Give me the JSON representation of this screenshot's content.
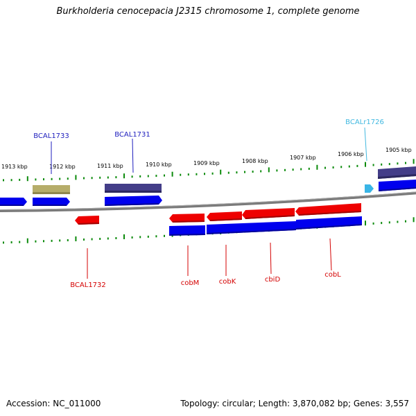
{
  "title": "Burkholderia cenocepacia J2315 chromosome 1, complete genome",
  "footer": {
    "accession": "Accession: NC_011000",
    "summary": "Topology: circular; Length: 3,870,082 bp; Genes: 3,557"
  },
  "colors": {
    "backbone": "#808080",
    "tick": "#0b8a0b",
    "cds_forward": "#0000ee",
    "cds_reverse": "#ee0000",
    "gene_olive": "#b6ad6a",
    "gene_purple": "#433d88",
    "rna": "#39b5e6",
    "label_blue": "#1d1dbd",
    "label_red": "#d40000",
    "label_cyan": "#40b8e0"
  },
  "scale_labels": [
    "1913 kbp",
    "1912 kbp",
    "1911 kbp",
    "1910 kbp",
    "1909 kbp",
    "1908 kbp",
    "1907 kbp",
    "1906 kbp",
    "1905 kbp"
  ],
  "upper_labels": [
    {
      "text": "BCAL1733",
      "kind": "blue"
    },
    {
      "text": "BCAL1731",
      "kind": "blue"
    },
    {
      "text": "BCALr1726",
      "kind": "cyan"
    }
  ],
  "lower_labels": [
    {
      "text": "BCAL1732",
      "kind": "red"
    },
    {
      "text": "cobM",
      "kind": "red"
    },
    {
      "text": "cobK",
      "kind": "red"
    },
    {
      "text": "cbiD",
      "kind": "red"
    },
    {
      "text": "cobL",
      "kind": "red"
    }
  ]
}
